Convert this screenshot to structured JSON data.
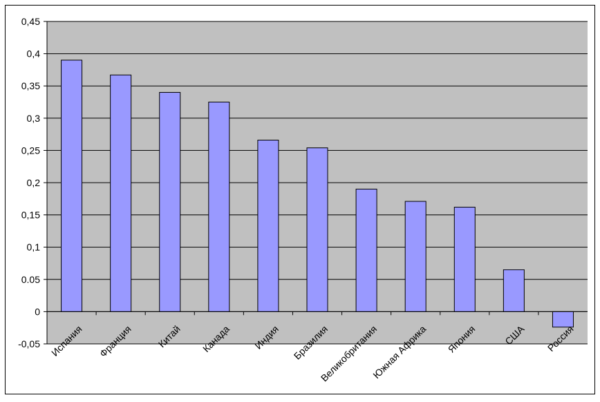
{
  "chart_data": {
    "type": "bar",
    "categories": [
      "Испания",
      "Франция",
      "Китай",
      "Канада",
      "Индия",
      "Бразилия",
      "Великобритания",
      "Южная Африка",
      "Япония",
      "США",
      "Россия"
    ],
    "values": [
      0.39,
      0.367,
      0.34,
      0.325,
      0.266,
      0.254,
      0.19,
      0.171,
      0.162,
      0.065,
      -0.024
    ],
    "color": "#9999ff",
    "ylim": [
      -0.05,
      0.45
    ],
    "yticks": [
      {
        "value": -0.05,
        "label": "-0,05"
      },
      0,
      {
        "value": 0.05,
        "label": "0.05"
      },
      {
        "value": 0.1,
        "label": "0,1"
      },
      {
        "value": 0.15,
        "label": "0,15"
      },
      {
        "value": 0.2,
        "label": "0,2"
      },
      {
        "value": 0.25,
        "label": "0,25"
      },
      {
        "value": 0.3,
        "label": "0,3"
      },
      {
        "value": 0.35,
        "label": "0,35"
      },
      {
        "value": 0.4,
        "label": "0,4"
      },
      {
        "value": 0.45,
        "label": "0,45"
      }
    ],
    "grid": true
  }
}
